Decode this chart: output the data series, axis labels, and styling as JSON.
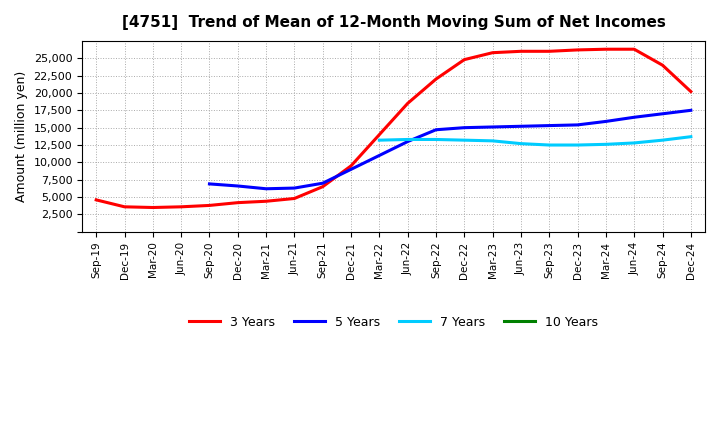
{
  "title": "[4751]  Trend of Mean of 12-Month Moving Sum of Net Incomes",
  "ylabel": "Amount (million yen)",
  "background_color": "#ffffff",
  "plot_bg_color": "#ffffff",
  "grid_color": "#aaaaaa",
  "x_labels": [
    "Sep-19",
    "Dec-19",
    "Mar-20",
    "Jun-20",
    "Sep-20",
    "Dec-20",
    "Mar-21",
    "Jun-21",
    "Sep-21",
    "Dec-21",
    "Mar-22",
    "Jun-22",
    "Sep-22",
    "Dec-22",
    "Mar-23",
    "Jun-23",
    "Sep-23",
    "Dec-23",
    "Mar-24",
    "Jun-24",
    "Sep-24",
    "Dec-24"
  ],
  "series": {
    "3 Years": {
      "color": "#ff0000",
      "linewidth": 2.2,
      "data_x": [
        0,
        1,
        2,
        3,
        4,
        5,
        6,
        7,
        8,
        9,
        10,
        11,
        12,
        13,
        14,
        15,
        16,
        17,
        18,
        19,
        20,
        21
      ],
      "data_y": [
        4600,
        3600,
        3500,
        3600,
        3800,
        4200,
        4400,
        4800,
        6500,
        9500,
        14000,
        18500,
        22000,
        24800,
        25800,
        26000,
        26000,
        26200,
        26300,
        26300,
        24000,
        20200
      ]
    },
    "5 Years": {
      "color": "#0000ff",
      "linewidth": 2.2,
      "data_x": [
        4,
        5,
        6,
        7,
        8,
        9,
        10,
        11,
        12,
        13,
        14,
        15,
        16,
        17,
        18,
        19,
        20,
        21
      ],
      "data_y": [
        6900,
        6600,
        6200,
        6300,
        7000,
        9000,
        11000,
        13000,
        14700,
        15000,
        15100,
        15200,
        15300,
        15400,
        15900,
        16500,
        17000,
        17500
      ]
    },
    "7 Years": {
      "color": "#00ccff",
      "linewidth": 2.2,
      "data_x": [
        10,
        11,
        12,
        13,
        14,
        15,
        16,
        17,
        18,
        19,
        20,
        21
      ],
      "data_y": [
        13200,
        13300,
        13300,
        13200,
        13100,
        12700,
        12500,
        12500,
        12600,
        12800,
        13200,
        13700
      ]
    },
    "10 Years": {
      "color": "#008000",
      "linewidth": 2.2,
      "data_x": [],
      "data_y": []
    }
  },
  "ylim": [
    0,
    27500
  ],
  "yticks": [
    0,
    2500,
    5000,
    7500,
    10000,
    12500,
    15000,
    17500,
    20000,
    22500,
    25000
  ],
  "legend_labels": [
    "3 Years",
    "5 Years",
    "7 Years",
    "10 Years"
  ],
  "legend_colors": [
    "#ff0000",
    "#0000ff",
    "#00ccff",
    "#008000"
  ]
}
